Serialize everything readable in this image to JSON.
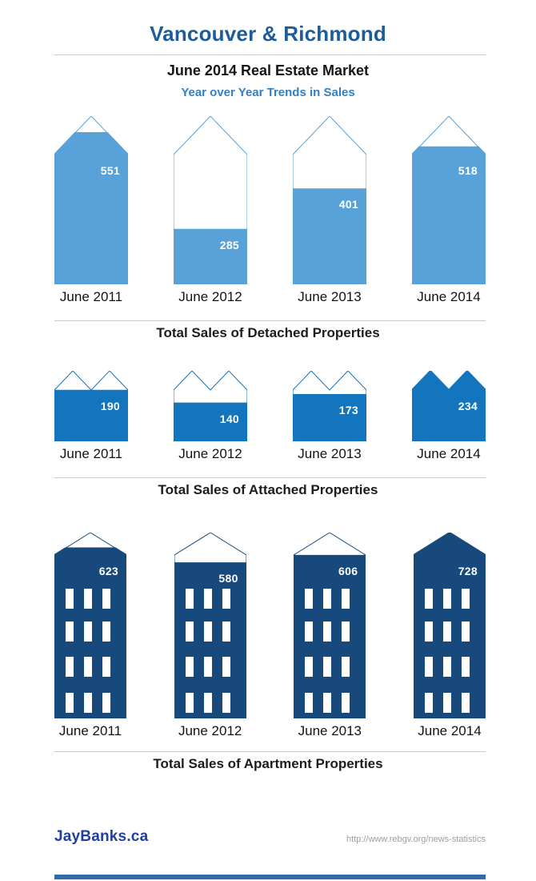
{
  "header": {
    "title": "Vancouver & Richmond",
    "subtitle": "June 2014 Real Estate Market",
    "tagline": "Year over Year Trends in Sales"
  },
  "footer": {
    "brand": "JayBanks.ca",
    "source_url": "http://www.rebgv.org/news-statistics"
  },
  "colors": {
    "title": "#1d5c96",
    "tagline": "#2f81c7",
    "detached_fill": "#59a2d9",
    "attached_fill": "#1375bd",
    "apartment_fill": "#17497c",
    "divider": "#c9c9c9",
    "brand": "#21409e",
    "url": "#9e9e9e",
    "bottom_bar": "#2f6bad",
    "value_label": "#ffffff"
  },
  "chart_data": [
    {
      "type": "bar",
      "title": "Total Sales of Detached Properties",
      "icon": "detached-house",
      "legend_position": "none",
      "grid": false,
      "categories": [
        "June 2011",
        "June 2012",
        "June 2013",
        "June 2014"
      ],
      "values": [
        551,
        285,
        401,
        518
      ],
      "fill_fractions": [
        0.905,
        0.33,
        0.57,
        0.82
      ],
      "color": "#59a2d9"
    },
    {
      "type": "bar",
      "title": "Total Sales of Attached Properties",
      "icon": "attached-house",
      "legend_position": "none",
      "grid": false,
      "categories": [
        "June 2011",
        "June 2012",
        "June 2013",
        "June 2014"
      ],
      "values": [
        190,
        140,
        173,
        234
      ],
      "fill_fractions": [
        0.73,
        0.55,
        0.67,
        1
      ],
      "color": "#1375bd"
    },
    {
      "type": "bar",
      "title": "Total Sales of Apartment Properties",
      "icon": "apartment-building",
      "legend_position": "none",
      "grid": false,
      "categories": [
        "June 2011",
        "June 2012",
        "June 2013",
        "June 2014"
      ],
      "values": [
        623,
        580,
        606,
        728
      ],
      "fill_fractions": [
        0.92,
        0.84,
        0.88,
        1
      ],
      "color": "#17497c"
    }
  ]
}
